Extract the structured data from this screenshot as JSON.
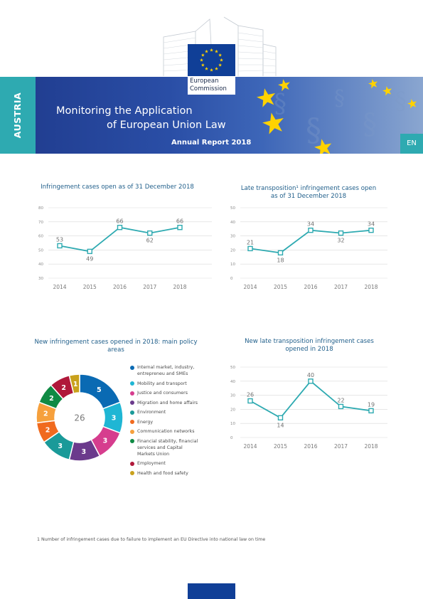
{
  "header": {
    "country": "AUSTRIA",
    "title_line1": "Monitoring the Application",
    "title_line2": "of European Union Law",
    "subtitle": "Annual Report 2018",
    "language": "EN",
    "logo_text_line1": "European",
    "logo_text_line2": "Commission",
    "colors": {
      "band": "#1f3a8c",
      "tab": "#2eaab1",
      "flag": "#103f97",
      "star": "#ffd200"
    }
  },
  "chart_data": [
    {
      "type": "line",
      "title": "Infringement cases open as of 31 December 2018",
      "x": [
        "2014",
        "2015",
        "2016",
        "2017",
        "2018"
      ],
      "values": [
        53,
        49,
        66,
        62,
        66
      ],
      "ylim": [
        30,
        80
      ],
      "yticks": [
        30,
        40,
        50,
        60,
        70,
        80
      ],
      "grid": true,
      "color": "#2eaab1"
    },
    {
      "type": "line",
      "title": "Late transposition¹ infringement cases open as of 31 December 2018",
      "x": [
        "2014",
        "2015",
        "2016",
        "2017",
        "2018"
      ],
      "values": [
        21,
        18,
        34,
        32,
        34
      ],
      "ylim": [
        0,
        50
      ],
      "yticks": [
        0,
        10,
        20,
        30,
        40,
        50
      ],
      "grid": true,
      "color": "#2eaab1"
    },
    {
      "type": "pie",
      "title": "New infringement cases opened in 2018: main policy areas",
      "center_label": "26",
      "categories": [
        "Internal market, industry, entrepreneu and SMEs",
        "Mobility and transport",
        "Justice and consumers",
        "Migration and home affairs",
        "Environment",
        "Energy",
        "Communication networks",
        "Financial stability, financial services and Capital Markets Union",
        "Employment",
        "Health and food safety"
      ],
      "values": [
        5,
        3,
        3,
        3,
        3,
        2,
        2,
        2,
        2,
        1
      ],
      "colors": [
        "#0a6ab3",
        "#1fb6d4",
        "#d63d8e",
        "#6b3a8c",
        "#1a9a99",
        "#f06a1e",
        "#f6a03c",
        "#0f8a44",
        "#b0183a",
        "#c9a11c"
      ]
    },
    {
      "type": "line",
      "title": "New late transposition infringement cases opened in 2018",
      "x": [
        "2014",
        "2015",
        "2016",
        "2017",
        "2018"
      ],
      "values": [
        26,
        14,
        40,
        22,
        19
      ],
      "ylim": [
        0,
        50
      ],
      "yticks": [
        0,
        10,
        20,
        30,
        40,
        50
      ],
      "grid": true,
      "color": "#2eaab1"
    }
  ],
  "footnote": "1 Number of infringement cases due to failure to implement an EU Directive into national law on time"
}
